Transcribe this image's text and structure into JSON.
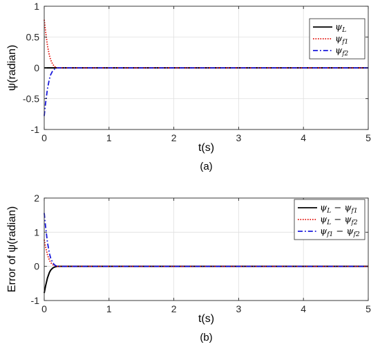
{
  "chart_data": [
    {
      "type": "line",
      "caption": "(a)",
      "xlabel": "t(s)",
      "ylabel": "ψ(radian)",
      "xlim": [
        0,
        5
      ],
      "ylim": [
        -1,
        1
      ],
      "xticks": [
        "0",
        "1",
        "2",
        "3",
        "4",
        "5"
      ],
      "yticks": [
        "1",
        "0.5",
        "0",
        "-0.5",
        "-1"
      ],
      "grid": true,
      "legend_position": "top-right",
      "series": [
        {
          "name": "ψL",
          "label_main": "ψ",
          "label_sub": "L",
          "color": "#000000",
          "style": "solid",
          "x": [
            0,
            0.02,
            0.05,
            0.1,
            0.15,
            0.2,
            5
          ],
          "y": [
            0,
            0,
            0,
            0,
            0,
            0,
            0
          ]
        },
        {
          "name": "ψf1",
          "label_main": "ψ",
          "label_sub": "f1",
          "color": "#e3120b",
          "style": "dotted",
          "x": [
            0,
            0.02,
            0.05,
            0.08,
            0.1,
            0.13,
            0.16,
            0.2,
            5
          ],
          "y": [
            0.78,
            0.6,
            0.36,
            0.2,
            0.13,
            0.06,
            0.02,
            0,
            0
          ]
        },
        {
          "name": "ψf2",
          "label_main": "ψ",
          "label_sub": "f2",
          "color": "#1a1adb",
          "style": "dashdot",
          "x": [
            0,
            0.02,
            0.05,
            0.08,
            0.1,
            0.13,
            0.16,
            0.2,
            5
          ],
          "y": [
            -0.78,
            -0.58,
            -0.34,
            -0.18,
            -0.11,
            -0.05,
            -0.02,
            0,
            0
          ]
        }
      ]
    },
    {
      "type": "line",
      "caption": "(b)",
      "xlabel": "t(s)",
      "ylabel": "Error of ψ(radian)",
      "xlim": [
        0,
        5
      ],
      "ylim": [
        -1,
        2
      ],
      "xticks": [
        "0",
        "1",
        "2",
        "3",
        "4",
        "5"
      ],
      "yticks": [
        "2",
        "1",
        "0",
        "-1"
      ],
      "grid": true,
      "legend_position": "top-right",
      "series": [
        {
          "name": "ψL − ψf1",
          "label_main": "ψ",
          "label_sub": "L",
          "label_main2": " − ψ",
          "label_sub2": "f1",
          "color": "#000000",
          "style": "solid",
          "x": [
            0,
            0.02,
            0.05,
            0.08,
            0.1,
            0.13,
            0.16,
            0.2,
            5
          ],
          "y": [
            -0.78,
            -0.58,
            -0.34,
            -0.18,
            -0.11,
            -0.05,
            -0.02,
            0,
            0
          ]
        },
        {
          "name": "ψL − ψf2",
          "label_main": "ψ",
          "label_sub": "L",
          "label_main2": " − ψ",
          "label_sub2": "f2",
          "color": "#e3120b",
          "style": "dotted",
          "x": [
            0,
            0.02,
            0.05,
            0.08,
            0.1,
            0.13,
            0.16,
            0.2,
            5
          ],
          "y": [
            0.78,
            0.58,
            0.34,
            0.18,
            0.11,
            0.05,
            0.02,
            0,
            0
          ]
        },
        {
          "name": "ψf1 − ψf2",
          "label_main": "ψ",
          "label_sub": "f1",
          "label_main2": " − ψ",
          "label_sub2": "f2",
          "color": "#1a1adb",
          "style": "dashdot",
          "x": [
            0,
            0.02,
            0.05,
            0.08,
            0.1,
            0.13,
            0.16,
            0.2,
            5
          ],
          "y": [
            1.56,
            1.18,
            0.7,
            0.38,
            0.24,
            0.11,
            0.04,
            0,
            0
          ]
        }
      ]
    }
  ]
}
